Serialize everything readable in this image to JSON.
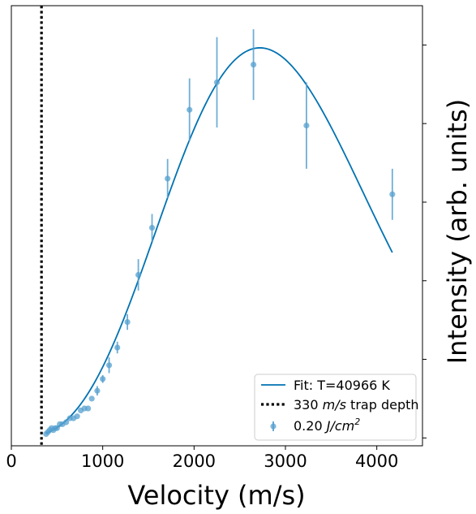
{
  "chart_data": {
    "type": "scatter",
    "xlabel": "Velocity (m/s)",
    "ylabel": "Intensity (arb. units)",
    "xlim": [
      0,
      4500
    ],
    "ylim": [
      -0.02,
      1.1
    ],
    "x_ticks": [
      0,
      1000,
      2000,
      3000,
      4000
    ],
    "y_tick_labels_shown": false,
    "grid": false,
    "legend_position": "lower right",
    "colors": {
      "fit_line": "#0072b2",
      "data_points": "#56a0cf",
      "trap_line": "#000000"
    },
    "trap_depth": {
      "x": 330,
      "label": "330 m/s trap depth",
      "label_parts": [
        "330",
        "m/s",
        "trap depth"
      ]
    },
    "fit": {
      "label": "Fit: T=40966 K",
      "x_start": 380,
      "x_end": 4170,
      "peak_x": 2720
    },
    "series": [
      {
        "name": "0.20 J/cm²",
        "label_parts": [
          "0.20",
          "J/cm",
          "2"
        ],
        "x": [
          380,
          400,
          420,
          440,
          460,
          480,
          500,
          530,
          560,
          600,
          640,
          680,
          720,
          760,
          800,
          840,
          880,
          940,
          1000,
          1070,
          1160,
          1270,
          1390,
          1540,
          1710,
          1950,
          2250,
          2650,
          3230,
          4170
        ],
        "y": [
          0.01,
          0.015,
          0.02,
          0.025,
          0.02,
          0.025,
          0.025,
          0.035,
          0.035,
          0.04,
          0.05,
          0.05,
          0.055,
          0.07,
          0.075,
          0.075,
          0.1,
          0.12,
          0.15,
          0.185,
          0.23,
          0.295,
          0.415,
          0.535,
          0.66,
          0.835,
          0.905,
          0.95,
          0.795,
          0.62
        ],
        "error": [
          0,
          0,
          0,
          0,
          0,
          0,
          0,
          0,
          0,
          0,
          0,
          0,
          0,
          0,
          0,
          0,
          0,
          0.012,
          0.01,
          0.02,
          0.015,
          0.02,
          0.04,
          0.035,
          0.05,
          0.08,
          0.115,
          0.09,
          0.11,
          0.065
        ]
      }
    ]
  }
}
